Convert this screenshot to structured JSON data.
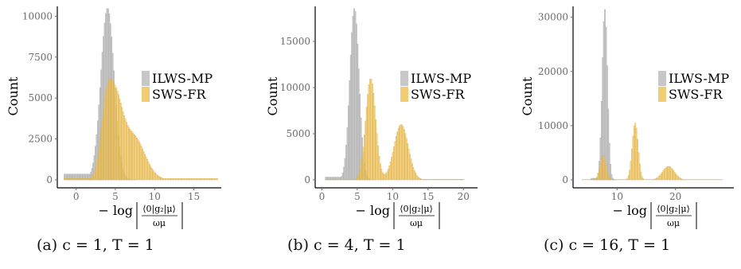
{
  "figure": {
    "ylabel": "Count",
    "xlabel": "− log |⟨0|g₂|μ⟩ / ωμ|",
    "xlabel_prefix": "− log",
    "xlabel_num": "⟨0|g₂|μ⟩",
    "xlabel_den": "ωμ"
  },
  "captions": [
    "(a) c = 1, T = 1",
    "(b) c = 4, T = 1",
    "(c) c = 16, T = 1"
  ],
  "colors": {
    "ILWS-MP": "#bdbdbd",
    "SWS-FR": "#f0c35a",
    "axis": "#000000",
    "tick": "#6b6b6b"
  },
  "chart_data": [
    {
      "type": "bar",
      "xlabel": "− log |⟨0|g₂|μ⟩ / ωμ|",
      "ylabel": "Count",
      "xlim": [
        -2,
        18.5
      ],
      "ylim": [
        0,
        10600
      ],
      "xticks": [
        0,
        5,
        10,
        15
      ],
      "yticks": [
        0,
        2500,
        5000,
        7500,
        10000
      ],
      "ytick_labels": [
        "0",
        "2500",
        "5000",
        "7500",
        "10000"
      ],
      "legend": "right",
      "series": [
        {
          "name": "ILWS-MP",
          "color": "#bdbdbd",
          "peaks": [
            {
              "center": 4.0,
              "height": 10500,
              "width": 0.85
            }
          ],
          "baseline": {
            "from": -1.5,
            "to": 3.0,
            "height": 350
          }
        },
        {
          "name": "SWS-FR",
          "color": "#f0c35a",
          "peaks": [
            {
              "center": 3.8,
              "height": 3600,
              "width": 0.7
            },
            {
              "center": 5.0,
              "height": 4000,
              "width": 0.9
            },
            {
              "center": 7.2,
              "height": 2700,
              "width": 1.5
            }
          ],
          "baseline": {
            "from": -1.5,
            "to": 18,
            "height": 80
          }
        }
      ]
    },
    {
      "type": "bar",
      "xlabel": "− log |⟨0|g₂|μ⟩ / ωμ|",
      "ylabel": "Count",
      "xlim": [
        -0.5,
        22
      ],
      "ylim": [
        0,
        18800
      ],
      "xticks": [
        0,
        5,
        10,
        15,
        20
      ],
      "yticks": [
        0,
        5000,
        10000,
        15000
      ],
      "ytick_labels": [
        "0",
        "5000",
        "10000",
        "15000"
      ],
      "legend": "right",
      "series": [
        {
          "name": "ILWS-MP",
          "color": "#bdbdbd",
          "peaks": [
            {
              "center": 4.6,
              "height": 18600,
              "width": 0.65
            }
          ],
          "baseline": {
            "from": 0.5,
            "to": 3.5,
            "height": 300
          }
        },
        {
          "name": "SWS-FR",
          "color": "#f0c35a",
          "peaks": [
            {
              "center": 6.9,
              "height": 11000,
              "width": 0.7
            },
            {
              "center": 11.2,
              "height": 6000,
              "width": 1.0
            }
          ],
          "baseline": {
            "from": 0.5,
            "to": 20,
            "height": 60
          }
        }
      ]
    },
    {
      "type": "bar",
      "xlabel": "− log |⟨0|g₂|μ⟩ / ωμ|",
      "ylabel": "Count",
      "xlim": [
        3,
        30
      ],
      "ylim": [
        0,
        32000
      ],
      "xticks": [
        10,
        20
      ],
      "yticks": [
        0,
        10000,
        20000,
        30000
      ],
      "ytick_labels": [
        "0",
        "10000",
        "20000",
        "30000"
      ],
      "legend": "right",
      "series": [
        {
          "name": "ILWS-MP",
          "color": "#bdbdbd",
          "peaks": [
            {
              "center": 7.9,
              "height": 31500,
              "width": 0.45
            }
          ],
          "baseline": {
            "from": 5.5,
            "to": 7.0,
            "height": 300
          }
        },
        {
          "name": "SWS-FR",
          "color": "#f0c35a",
          "peaks": [
            {
              "center": 7.6,
              "height": 4500,
              "width": 0.5
            },
            {
              "center": 13.1,
              "height": 10500,
              "width": 0.5
            },
            {
              "center": 18.8,
              "height": 2500,
              "width": 1.0
            }
          ],
          "baseline": {
            "from": 4,
            "to": 28,
            "height": 60
          }
        }
      ]
    }
  ]
}
